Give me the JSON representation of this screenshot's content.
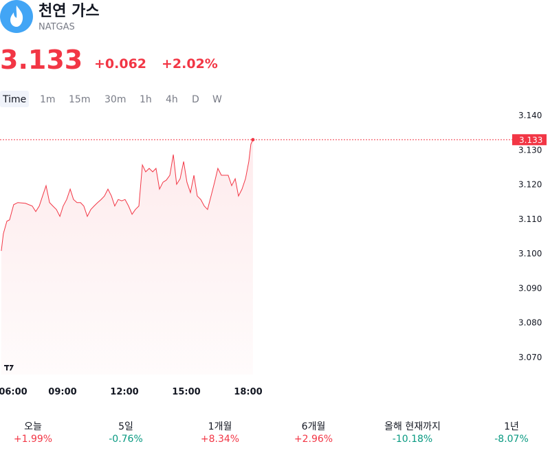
{
  "header": {
    "title": "천연 가스",
    "symbol": "NATGAS",
    "price": "3.133",
    "change": "+0.062",
    "change_percent": "+2.02%",
    "color": "#f23645"
  },
  "tabs": [
    "Time",
    "1m",
    "15m",
    "30m",
    "1h",
    "4h",
    "D",
    "W"
  ],
  "chart_data": {
    "type": "line",
    "x": [
      6.03,
      6.13,
      6.3,
      6.43,
      6.63,
      6.83,
      7.2,
      7.53,
      7.7,
      7.87,
      8.03,
      8.2,
      8.37,
      8.53,
      8.7,
      8.87,
      9.03,
      9.2,
      9.37,
      9.53,
      9.7,
      9.87,
      10.03,
      10.2,
      10.37,
      10.53,
      10.7,
      10.87,
      11.03,
      11.2,
      11.37,
      11.53,
      11.7,
      11.87,
      12.03,
      12.2,
      12.37,
      12.53,
      12.7,
      12.87,
      13.03,
      13.2,
      13.37,
      13.53,
      13.7,
      13.87,
      14.03,
      14.2,
      14.37,
      14.53,
      14.7,
      14.87,
      15.03,
      15.2,
      15.37,
      15.53,
      15.7,
      15.87,
      16.03,
      16.2,
      16.37,
      16.53,
      16.7,
      16.87,
      17.03,
      17.2,
      17.37,
      17.53,
      17.7,
      17.87,
      18.03,
      18.13,
      18.23
    ],
    "series": [
      {
        "name": "NATGAS",
        "color": "#f23645",
        "values": [
          3.1008,
          3.1058,
          3.1094,
          3.1098,
          3.1142,
          3.1148,
          3.1146,
          3.1138,
          3.1122,
          3.1138,
          3.1167,
          3.1197,
          3.1148,
          3.1138,
          3.1128,
          3.1108,
          3.1138,
          3.1157,
          3.1187,
          3.1157,
          3.1148,
          3.1148,
          3.1138,
          3.1108,
          3.1128,
          3.1138,
          3.1148,
          3.1157,
          3.1167,
          3.1187,
          3.1167,
          3.1138,
          3.1157,
          3.1153,
          3.1157,
          3.1138,
          3.1114,
          3.1128,
          3.1138,
          3.1257,
          3.1237,
          3.1247,
          3.1237,
          3.1247,
          3.1187,
          3.1207,
          3.1213,
          3.1227,
          3.1287,
          3.1201,
          3.1217,
          3.1267,
          3.1207,
          3.1177,
          3.1227,
          3.1167,
          3.1157,
          3.1138,
          3.1128,
          3.1167,
          3.1207,
          3.1247,
          3.1227,
          3.1227,
          3.1227,
          3.1197,
          3.1217,
          3.1167,
          3.1187,
          3.1217,
          3.1267,
          3.1317,
          3.133
        ]
      }
    ],
    "xlim": [
      5.9667,
      30.6333
    ],
    "xticks": [
      {
        "value": 6,
        "label": "06:00"
      },
      {
        "value": 9,
        "label": "09:00"
      },
      {
        "value": 12,
        "label": "12:00"
      },
      {
        "value": 15,
        "label": "15:00"
      },
      {
        "value": 18,
        "label": "18:00"
      }
    ],
    "ylim": [
      3.065,
      3.1436
    ],
    "yticks": [
      {
        "value": 3.07,
        "label": "3.070"
      },
      {
        "value": 3.08,
        "label": "3.080"
      },
      {
        "value": 3.09,
        "label": "3.090"
      },
      {
        "value": 3.1,
        "label": "3.100"
      },
      {
        "value": 3.11,
        "label": "3.110"
      },
      {
        "value": 3.12,
        "label": "3.120"
      },
      {
        "value": 3.13,
        "label": "3.130"
      },
      {
        "value": 3.14,
        "label": "3.140"
      }
    ],
    "grid": false
  },
  "performance": [
    {
      "label": "오늘",
      "value": "+1.99%",
      "color": "#f23645"
    },
    {
      "label": "5일",
      "value": "-0.76%",
      "color": "#089981"
    },
    {
      "label": "1개월",
      "value": "+8.34%",
      "color": "#f23645"
    },
    {
      "label": "6개월",
      "value": "+2.96%",
      "color": "#f23645"
    },
    {
      "label": "올해 현재까지",
      "value": "-10.18%",
      "color": "#089981"
    },
    {
      "label": "1년",
      "value": "-8.07%",
      "color": "#089981"
    }
  ]
}
